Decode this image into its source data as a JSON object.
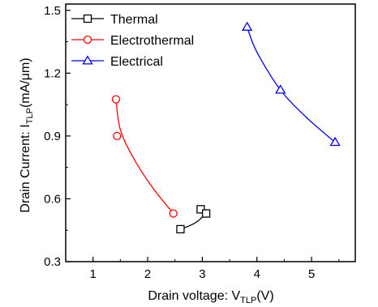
{
  "chart_data": {
    "type": "scatter",
    "x_axis": {
      "label_main": "Drain voltage: V",
      "label_sub": "TLP",
      "label_end": "(V)",
      "ticks": [
        1,
        2,
        3,
        4,
        5
      ],
      "tick_labels": [
        "1",
        "2",
        "3",
        "4",
        "5"
      ],
      "range": [
        0.5,
        5.8
      ]
    },
    "y_axis": {
      "label_main": "Drain Current: I",
      "label_sub": "TLP",
      "label_end": "(mA/μm)",
      "ticks": [
        0.3,
        0.6,
        0.9,
        1.2,
        1.5
      ],
      "tick_labels": [
        "0.3",
        "0.6",
        "0.9",
        "1.2",
        "1.5"
      ],
      "range": [
        0.3,
        1.53
      ]
    },
    "grid": false,
    "legend_position": "top-left",
    "series": [
      {
        "name": "Thermal",
        "marker": "square",
        "color": "#000000",
        "x": [
          2.6,
          2.97,
          3.07
        ],
        "y": [
          0.455,
          0.55,
          0.53
        ],
        "curve": [
          [
            2.6,
            0.455
          ],
          [
            2.75,
            0.47
          ],
          [
            2.9,
            0.49
          ],
          [
            3.07,
            0.53
          ]
        ]
      },
      {
        "name": "Electrothermal",
        "marker": "circle",
        "color": "#ff0000",
        "x": [
          1.42,
          1.44,
          2.47
        ],
        "y": [
          1.075,
          0.9,
          0.53
        ],
        "curve": [
          [
            1.42,
            1.075
          ],
          [
            1.5,
            0.93
          ],
          [
            1.75,
            0.79
          ],
          [
            2.1,
            0.65
          ],
          [
            2.47,
            0.53
          ]
        ]
      },
      {
        "name": "Electrical",
        "marker": "triangle",
        "color": "#0000ff",
        "x": [
          3.82,
          4.43,
          5.43
        ],
        "y": [
          1.42,
          1.12,
          0.87
        ],
        "curve": [
          [
            3.82,
            1.42
          ],
          [
            4.0,
            1.3
          ],
          [
            4.43,
            1.12
          ],
          [
            4.9,
            0.99
          ],
          [
            5.43,
            0.87
          ]
        ]
      }
    ]
  }
}
